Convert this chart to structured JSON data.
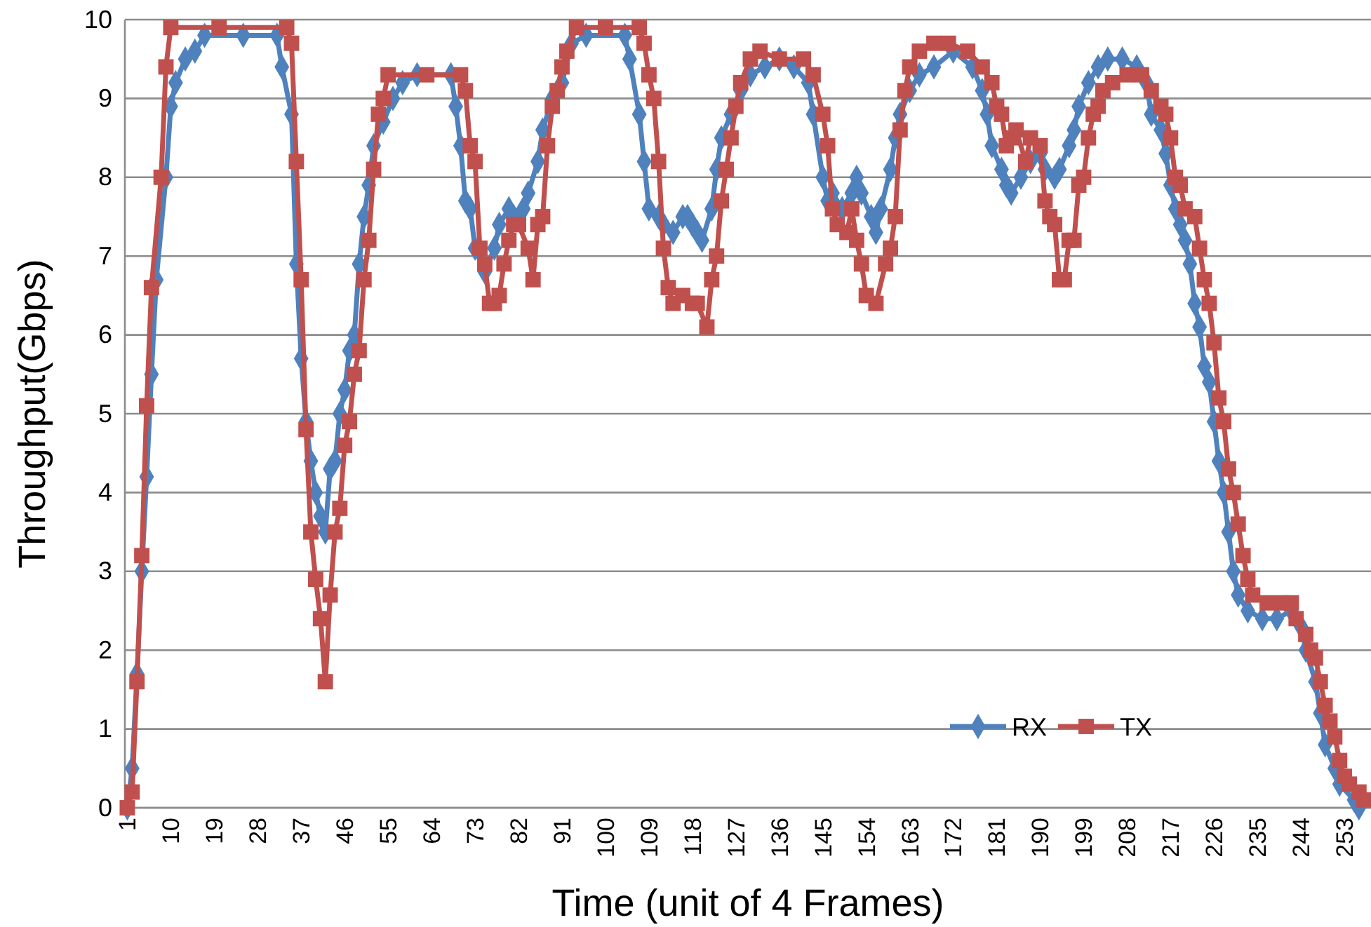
{
  "chart_data": {
    "type": "line",
    "xlabel": "Time (unit of 4 Frames)",
    "ylabel": "Throughput(Gbps)",
    "xlim": [
      0.5,
      258.5
    ],
    "xticks": [
      1,
      10,
      19,
      28,
      37,
      46,
      55,
      64,
      73,
      82,
      91,
      100,
      109,
      118,
      127,
      136,
      145,
      154,
      163,
      172,
      181,
      190,
      199,
      208,
      217,
      226,
      235,
      244,
      253
    ],
    "ylim": [
      0,
      10
    ],
    "yticks": [
      0,
      1,
      2,
      3,
      4,
      5,
      6,
      7,
      8,
      9,
      10
    ],
    "grid": "y",
    "legend": "bottom right",
    "line_style": "solid",
    "series": [
      {
        "name": "RX",
        "color": "#4f81bd",
        "marker": "diamond",
        "x": [
          1,
          2,
          3,
          4,
          5,
          6,
          7,
          9,
          10,
          11,
          13,
          15,
          17,
          25,
          32,
          33,
          35,
          36,
          37,
          38,
          39,
          40,
          41,
          42,
          43,
          44,
          45,
          46,
          47,
          48,
          49,
          50,
          51,
          52,
          54,
          56,
          58,
          61,
          68,
          69,
          70,
          71,
          72,
          73,
          75,
          77,
          78,
          80,
          81,
          83,
          84,
          86,
          87,
          89,
          91,
          93,
          96,
          104,
          105,
          107,
          108,
          109,
          111,
          112,
          114,
          116,
          117,
          118,
          119,
          120,
          122,
          123,
          124,
          126,
          128,
          130,
          133,
          136,
          139,
          142,
          143,
          145,
          146,
          147,
          149,
          151,
          152,
          153,
          155,
          156,
          157,
          159,
          160,
          161,
          163,
          165,
          168,
          172,
          176,
          178,
          179,
          180,
          182,
          183,
          184,
          186,
          188,
          190,
          191,
          193,
          194,
          196,
          197,
          198,
          200,
          202,
          204,
          207,
          210,
          212,
          213,
          215,
          216,
          217,
          218,
          219,
          220,
          221,
          222,
          223,
          224,
          225,
          226,
          227,
          228,
          229,
          230,
          231,
          233,
          236,
          239,
          242,
          244,
          245,
          247,
          248,
          249,
          251,
          252,
          255,
          256
        ],
        "values": [
          0,
          0.5,
          1.7,
          3.0,
          4.2,
          5.5,
          6.7,
          8.0,
          8.9,
          9.2,
          9.5,
          9.6,
          9.8,
          9.8,
          9.8,
          9.4,
          8.8,
          6.9,
          5.7,
          4.9,
          4.4,
          4.0,
          3.7,
          3.5,
          4.3,
          4.4,
          5.0,
          5.3,
          5.8,
          6.0,
          6.9,
          7.5,
          7.9,
          8.4,
          8.7,
          9.0,
          9.2,
          9.3,
          9.3,
          8.9,
          8.4,
          7.7,
          7.6,
          7.1,
          6.8,
          7.1,
          7.4,
          7.6,
          7.5,
          7.6,
          7.8,
          8.2,
          8.6,
          9.0,
          9.2,
          9.7,
          9.8,
          9.8,
          9.5,
          8.8,
          8.2,
          7.6,
          7.5,
          7.4,
          7.3,
          7.5,
          7.5,
          7.4,
          7.3,
          7.2,
          7.6,
          8.1,
          8.5,
          8.8,
          9.1,
          9.3,
          9.4,
          9.5,
          9.4,
          9.2,
          8.8,
          8.0,
          7.7,
          7.8,
          7.6,
          7.8,
          8.0,
          7.8,
          7.5,
          7.3,
          7.6,
          8.1,
          8.5,
          8.8,
          9.1,
          9.3,
          9.4,
          9.6,
          9.4,
          9.1,
          8.8,
          8.4,
          8.1,
          7.9,
          7.8,
          8.0,
          8.2,
          8.3,
          8.1,
          8.0,
          8.1,
          8.4,
          8.6,
          8.9,
          9.2,
          9.4,
          9.5,
          9.5,
          9.4,
          9.2,
          8.8,
          8.6,
          8.3,
          7.9,
          7.6,
          7.4,
          7.2,
          6.9,
          6.4,
          6.1,
          5.6,
          5.4,
          4.9,
          4.4,
          4.0,
          3.5,
          3.0,
          2.7,
          2.5,
          2.4,
          2.4,
          2.5,
          2.3,
          2.0,
          1.6,
          1.2,
          0.8,
          0.5,
          0.3,
          0.1,
          0
        ]
      },
      {
        "name": "TX",
        "color": "#c0504d",
        "marker": "square",
        "x": [
          1,
          2,
          3,
          4,
          5,
          6,
          8,
          9,
          10,
          20,
          34,
          35,
          36,
          37,
          38,
          39,
          40,
          41,
          42,
          43,
          44,
          45,
          46,
          47,
          48,
          49,
          50,
          51,
          52,
          53,
          54,
          55,
          63,
          70,
          71,
          72,
          73,
          74,
          75,
          76,
          77,
          78,
          79,
          80,
          81,
          82,
          84,
          85,
          86,
          87,
          88,
          89,
          90,
          91,
          92,
          94,
          100,
          107,
          108,
          109,
          110,
          111,
          112,
          113,
          114,
          116,
          118,
          119,
          121,
          122,
          123,
          124,
          125,
          126,
          127,
          128,
          130,
          132,
          136,
          141,
          143,
          145,
          146,
          147,
          148,
          150,
          151,
          152,
          153,
          154,
          156,
          158,
          159,
          160,
          161,
          162,
          163,
          165,
          168,
          171,
          175,
          178,
          180,
          181,
          182,
          183,
          184,
          185,
          187,
          188,
          190,
          191,
          192,
          193,
          194,
          195,
          196,
          197,
          198,
          199,
          200,
          201,
          202,
          203,
          205,
          208,
          211,
          213,
          215,
          216,
          217,
          218,
          219,
          220,
          222,
          223,
          224,
          225,
          226,
          227,
          228,
          229,
          230,
          231,
          232,
          233,
          234,
          237,
          240,
          242,
          243,
          245,
          246,
          247,
          248,
          249,
          250,
          251,
          252,
          253,
          254,
          256,
          257
        ],
        "values": [
          0,
          0.2,
          1.6,
          3.2,
          5.1,
          6.6,
          8.0,
          9.4,
          9.9,
          9.9,
          9.9,
          9.7,
          8.2,
          6.7,
          4.8,
          3.5,
          2.9,
          2.4,
          1.6,
          2.7,
          3.5,
          3.8,
          4.6,
          4.9,
          5.5,
          5.8,
          6.7,
          7.2,
          8.1,
          8.8,
          9.0,
          9.3,
          9.3,
          9.3,
          9.1,
          8.4,
          8.2,
          7.1,
          6.9,
          6.4,
          6.4,
          6.5,
          6.9,
          7.2,
          7.4,
          7.4,
          7.1,
          6.7,
          7.4,
          7.5,
          8.4,
          8.9,
          9.1,
          9.4,
          9.6,
          9.9,
          9.9,
          9.9,
          9.7,
          9.3,
          9.0,
          8.2,
          7.1,
          6.6,
          6.4,
          6.5,
          6.4,
          6.4,
          6.1,
          6.7,
          7.0,
          7.7,
          8.1,
          8.5,
          8.9,
          9.2,
          9.5,
          9.6,
          9.5,
          9.5,
          9.3,
          8.8,
          8.4,
          7.6,
          7.4,
          7.3,
          7.6,
          7.2,
          6.9,
          6.5,
          6.4,
          6.9,
          7.1,
          7.5,
          8.6,
          9.1,
          9.4,
          9.6,
          9.7,
          9.7,
          9.6,
          9.4,
          9.2,
          8.9,
          8.8,
          8.4,
          8.5,
          8.6,
          8.2,
          8.5,
          8.4,
          7.7,
          7.5,
          7.4,
          6.7,
          6.7,
          7.2,
          7.2,
          7.9,
          8.0,
          8.5,
          8.8,
          8.9,
          9.1,
          9.2,
          9.3,
          9.3,
          9.1,
          8.9,
          8.8,
          8.5,
          8.0,
          7.9,
          7.6,
          7.5,
          7.1,
          6.7,
          6.4,
          5.9,
          5.2,
          4.9,
          4.3,
          4.0,
          3.6,
          3.2,
          2.9,
          2.7,
          2.6,
          2.6,
          2.6,
          2.4,
          2.2,
          2.0,
          1.9,
          1.6,
          1.3,
          1.1,
          0.9,
          0.6,
          0.4,
          0.3,
          0.2,
          0.1
        ]
      }
    ]
  }
}
